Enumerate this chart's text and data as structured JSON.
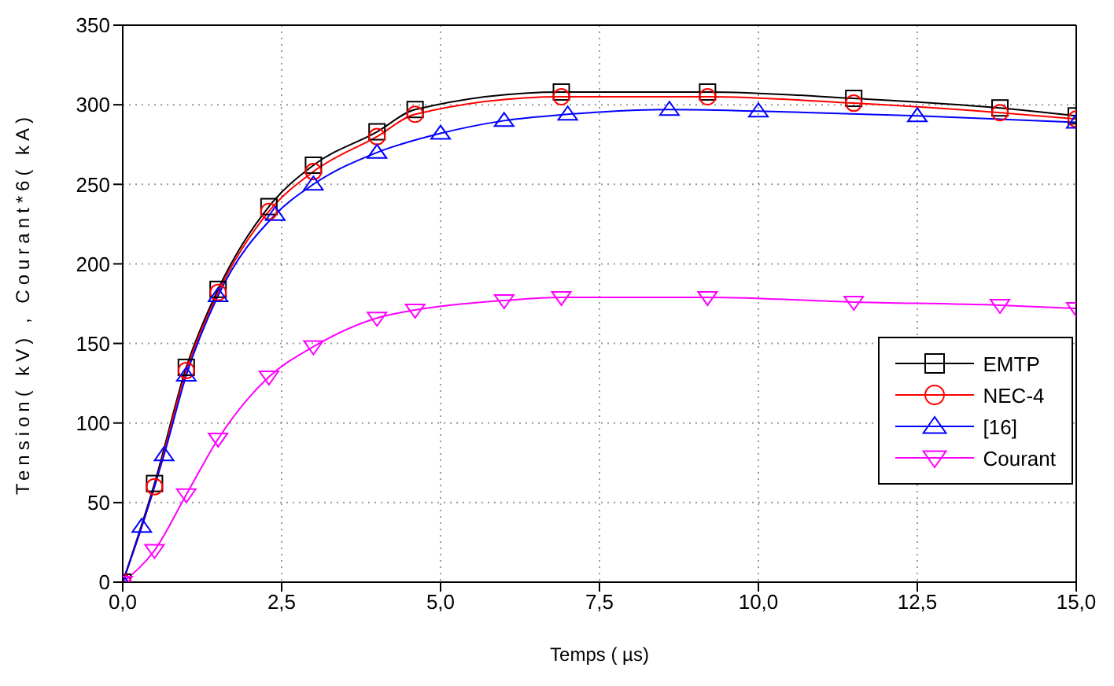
{
  "chart_data": {
    "type": "line",
    "xlabel": "Temps (  µs)",
    "ylabel": "Tension( kV) , Courant*6( kA)",
    "xlim": [
      0,
      15
    ],
    "xticks": [
      {
        "value": 0,
        "label": "0,0"
      },
      {
        "value": 2.5,
        "label": "2,5"
      },
      {
        "value": 5,
        "label": "5,0"
      },
      {
        "value": 7.5,
        "label": "7,5"
      },
      {
        "value": 10,
        "label": "10,0"
      },
      {
        "value": 12.5,
        "label": "12,5"
      },
      {
        "value": 15,
        "label": "15,0"
      }
    ],
    "ylim": [
      0,
      350
    ],
    "yticks": [
      0,
      50,
      100,
      150,
      200,
      250,
      300,
      350
    ],
    "grid": true,
    "legend": "bottom right",
    "line_style": "solid",
    "series": [
      {
        "name": "EMTP",
        "color": "#000000",
        "marker": "square",
        "x": [
          0,
          0.5,
          1,
          1.5,
          2.3,
          3,
          4,
          4.6,
          6.9,
          9.2,
          11.5,
          13.8,
          15
        ],
        "values": [
          0,
          62,
          135,
          184,
          236,
          262,
          283,
          297,
          308,
          308,
          304,
          298,
          293
        ]
      },
      {
        "name": "NEC-4",
        "color": "#ff0000",
        "marker": "circle",
        "x": [
          0,
          0.5,
          1,
          1.5,
          2.3,
          3,
          4,
          4.6,
          6.9,
          9.2,
          11.5,
          13.8,
          15
        ],
        "values": [
          0,
          60,
          133,
          182,
          233,
          258,
          280,
          294,
          305,
          305,
          301,
          295,
          291
        ]
      },
      {
        "name": "[16]",
        "color": "#0000ff",
        "marker": "triangle",
        "x": [
          0,
          0.3,
          0.65,
          1,
          1.5,
          2.4,
          3,
          4,
          5,
          6,
          7,
          8.6,
          10,
          12.5,
          15
        ],
        "values": [
          0,
          35,
          80,
          130,
          180,
          231,
          250,
          270,
          282,
          290,
          294,
          297,
          296,
          293,
          289
        ]
      },
      {
        "name": "Courant",
        "color": "#ff00ff",
        "marker": "triangle-down",
        "x": [
          0,
          0.5,
          1,
          1.5,
          2.3,
          3,
          4,
          4.6,
          6,
          6.9,
          9.2,
          11.5,
          13.8,
          15
        ],
        "values": [
          0,
          20,
          55,
          90,
          129,
          148,
          166,
          171,
          177,
          179,
          179,
          176,
          174,
          172
        ]
      }
    ]
  }
}
